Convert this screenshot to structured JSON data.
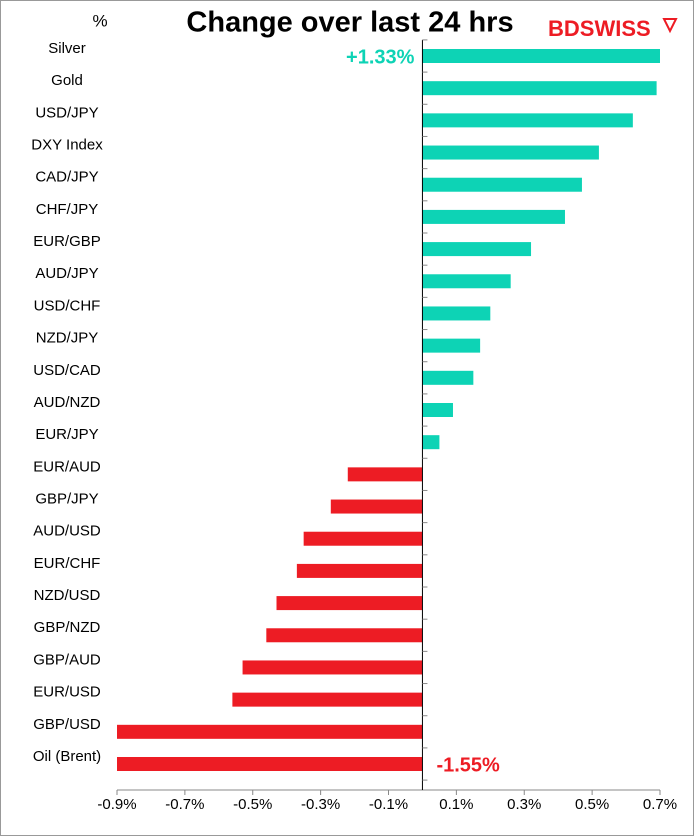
{
  "chart_data": {
    "type": "hbar",
    "title": "Change over last 24 hrs",
    "unit_label": "%",
    "logo": "BDSWISS",
    "categories": [
      "Silver",
      "Gold",
      "USD/JPY",
      "DXY Index",
      "CAD/JPY",
      "CHF/JPY",
      "EUR/GBP",
      "AUD/JPY",
      "USD/CHF",
      "NZD/JPY",
      "USD/CAD",
      "AUD/NZD",
      "EUR/JPY",
      "EUR/AUD",
      "GBP/JPY",
      "AUD/USD",
      "EUR/CHF",
      "NZD/USD",
      "GBP/NZD",
      "GBP/AUD",
      "EUR/USD",
      "GBP/USD",
      "Oil (Brent)"
    ],
    "values": [
      1.33,
      0.69,
      0.62,
      0.52,
      0.47,
      0.42,
      0.32,
      0.26,
      0.2,
      0.17,
      0.15,
      0.09,
      0.05,
      -0.22,
      -0.27,
      -0.35,
      -0.37,
      -0.43,
      -0.46,
      -0.53,
      -0.56,
      -0.9,
      -1.55
    ],
    "value_labels": [
      "+1.33%",
      null,
      null,
      null,
      null,
      null,
      null,
      null,
      null,
      null,
      null,
      null,
      null,
      null,
      null,
      null,
      null,
      null,
      null,
      null,
      null,
      null,
      "-1.55%"
    ],
    "positive_color": "#0dd3b5",
    "negative_color": "#ed1c24",
    "xlim": [
      -0.9,
      0.7
    ],
    "xticks": [
      {
        "value": -0.9,
        "label": "-0.9%"
      },
      {
        "value": -0.7,
        "label": "-0.7%"
      },
      {
        "value": -0.5,
        "label": "-0.5%"
      },
      {
        "value": -0.3,
        "label": "-0.3%"
      },
      {
        "value": -0.1,
        "label": "-0.1%"
      },
      {
        "value": 0.1,
        "label": "0.1%"
      },
      {
        "value": 0.3,
        "label": "0.3%"
      },
      {
        "value": 0.5,
        "label": "0.5%"
      },
      {
        "value": 0.7,
        "label": "0.7%"
      }
    ]
  }
}
